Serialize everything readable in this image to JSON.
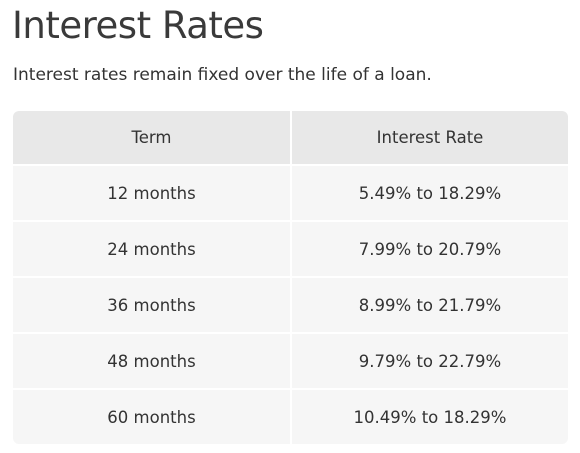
{
  "header": {
    "title": "Interest Rates",
    "subtitle": "Interest rates remain fixed over the life of a loan."
  },
  "table": {
    "columns": [
      "Term",
      "Interest Rate"
    ],
    "rows": [
      [
        "12 months",
        "5.49% to 18.29%"
      ],
      [
        "24 months",
        "7.99% to 20.79%"
      ],
      [
        "36 months",
        "8.99% to 21.79%"
      ],
      [
        "48 months",
        "9.79% to 22.79%"
      ],
      [
        "60 months",
        "10.49% to 18.29%"
      ]
    ]
  }
}
